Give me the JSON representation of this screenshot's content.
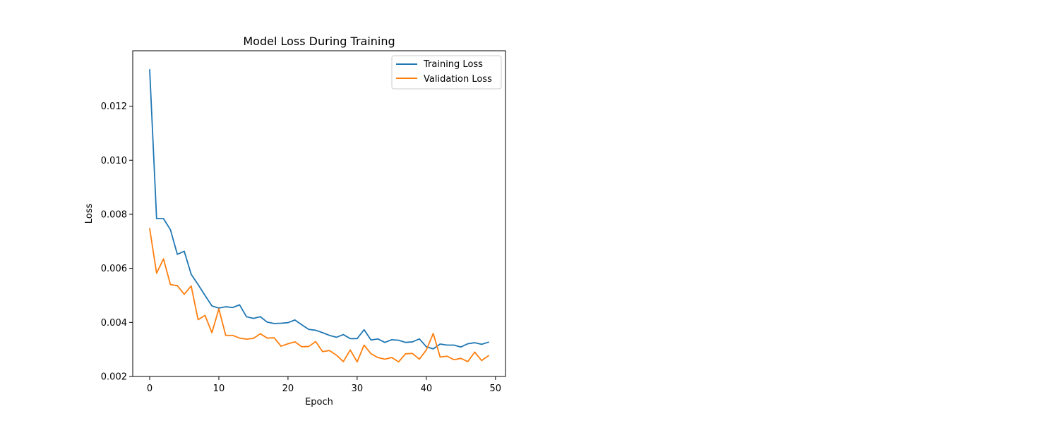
{
  "chart_data": {
    "type": "line",
    "title": "Model Loss During Training",
    "xlabel": "Epoch",
    "ylabel": "Loss",
    "xlim": [
      -2.45,
      51.45
    ],
    "ylim": [
      0.002,
      0.01405
    ],
    "xticks": [
      0,
      10,
      20,
      30,
      40,
      50
    ],
    "xtick_labels": [
      "0",
      "10",
      "20",
      "30",
      "40",
      "50"
    ],
    "yticks": [
      0.002,
      0.004,
      0.006,
      0.008,
      0.01,
      0.012
    ],
    "ytick_labels": [
      "0.002",
      "0.004",
      "0.006",
      "0.008",
      "0.010",
      "0.012"
    ],
    "grid": false,
    "legend_position": "top-right",
    "x": [
      0,
      1,
      2,
      3,
      4,
      5,
      6,
      7,
      8,
      9,
      10,
      11,
      12,
      13,
      14,
      15,
      16,
      17,
      18,
      19,
      20,
      21,
      22,
      23,
      24,
      25,
      26,
      27,
      28,
      29,
      30,
      31,
      32,
      33,
      34,
      35,
      36,
      37,
      38,
      39,
      40,
      41,
      42,
      43,
      44,
      45,
      46,
      47,
      48,
      49
    ],
    "series": [
      {
        "name": "Training Loss",
        "color": "#1f77b4",
        "values": [
          0.01335,
          0.00784,
          0.00784,
          0.00743,
          0.00652,
          0.00663,
          0.00578,
          0.0054,
          0.005,
          0.00461,
          0.00453,
          0.00458,
          0.00455,
          0.00465,
          0.00421,
          0.00415,
          0.00421,
          0.00401,
          0.00396,
          0.00397,
          0.00399,
          0.00409,
          0.00391,
          0.00374,
          0.00371,
          0.00362,
          0.00352,
          0.00345,
          0.00355,
          0.0034,
          0.0034,
          0.00373,
          0.00335,
          0.00339,
          0.00326,
          0.00336,
          0.00334,
          0.00326,
          0.00328,
          0.00339,
          0.0031,
          0.00302,
          0.0032,
          0.00316,
          0.00316,
          0.00309,
          0.00321,
          0.00325,
          0.00319,
          0.00327
        ]
      },
      {
        "name": "Validation Loss",
        "color": "#ff7f0e",
        "values": [
          0.00747,
          0.00582,
          0.00635,
          0.0054,
          0.00536,
          0.00504,
          0.00535,
          0.0041,
          0.00426,
          0.00362,
          0.0045,
          0.00352,
          0.00352,
          0.00342,
          0.00338,
          0.00341,
          0.00358,
          0.00342,
          0.00343,
          0.00312,
          0.00321,
          0.00328,
          0.0031,
          0.00311,
          0.00329,
          0.00292,
          0.00296,
          0.00279,
          0.00255,
          0.00298,
          0.00254,
          0.00316,
          0.00284,
          0.0027,
          0.00264,
          0.0027,
          0.00254,
          0.00284,
          0.00285,
          0.00264,
          0.00298,
          0.00359,
          0.00272,
          0.00275,
          0.00262,
          0.00267,
          0.00255,
          0.0029,
          0.00259,
          0.00277
        ]
      }
    ]
  }
}
